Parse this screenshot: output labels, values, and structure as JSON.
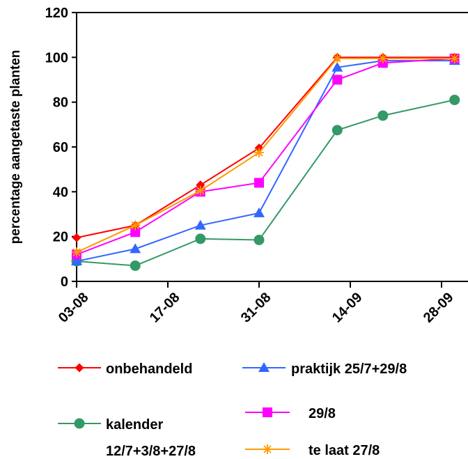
{
  "chart_data": {
    "type": "line",
    "title": "",
    "xlabel": "",
    "ylabel": "percentage aangetaste planten",
    "ylim": [
      0,
      120
    ],
    "yticks": [
      "0",
      "20",
      "40",
      "60",
      "80",
      "100",
      "120"
    ],
    "xlim": [
      "03-08",
      "07-10"
    ],
    "xticks": [
      "03-08",
      "17-08",
      "31-08",
      "14-09",
      "28-09"
    ],
    "grid": false,
    "legend_position": "bottom",
    "series": [
      {
        "name": "onbehandeld",
        "color": "#ff0000",
        "marker": "diamond",
        "points": [
          {
            "x": "03-08",
            "y": 19.5
          },
          {
            "x": "12-08",
            "y": 25
          },
          {
            "x": "22-08",
            "y": 43
          },
          {
            "x": "31-08",
            "y": 59.5
          },
          {
            "x": "12-09",
            "y": 100
          },
          {
            "x": "19-09",
            "y": 100
          },
          {
            "x": "30-09",
            "y": 100
          }
        ]
      },
      {
        "name": "praktijk 25/7+29/8",
        "color": "#3366ff",
        "marker": "triangle",
        "points": [
          {
            "x": "03-08",
            "y": 9
          },
          {
            "x": "12-08",
            "y": 14.5
          },
          {
            "x": "22-08",
            "y": 25
          },
          {
            "x": "31-08",
            "y": 30.5
          },
          {
            "x": "12-09",
            "y": 95.5
          },
          {
            "x": "19-09",
            "y": 98.5
          },
          {
            "x": "30-09",
            "y": 98.5
          }
        ]
      },
      {
        "name": "kalender 12/7+3/8+27/8",
        "name_lines": [
          "kalender",
          "12/7+3/8+27/8"
        ],
        "color": "#339966",
        "marker": "circle",
        "points": [
          {
            "x": "03-08",
            "y": 9
          },
          {
            "x": "12-08",
            "y": 7
          },
          {
            "x": "22-08",
            "y": 19
          },
          {
            "x": "31-08",
            "y": 18.5
          },
          {
            "x": "12-09",
            "y": 67.5
          },
          {
            "x": "19-09",
            "y": 74
          },
          {
            "x": "30-09",
            "y": 81
          }
        ]
      },
      {
        "name": "29/8",
        "color": "#ff00ff",
        "marker": "square",
        "points": [
          {
            "x": "03-08",
            "y": 12
          },
          {
            "x": "12-08",
            "y": 22
          },
          {
            "x": "22-08",
            "y": 40
          },
          {
            "x": "31-08",
            "y": 44
          },
          {
            "x": "12-09",
            "y": 90
          },
          {
            "x": "19-09",
            "y": 97.5
          },
          {
            "x": "30-09",
            "y": 99.5
          }
        ]
      },
      {
        "name": "te laat 27/8",
        "color": "#ff9900",
        "marker": "asterisk",
        "points": [
          {
            "x": "03-08",
            "y": 13
          },
          {
            "x": "12-08",
            "y": 25
          },
          {
            "x": "22-08",
            "y": 40.5
          },
          {
            "x": "31-08",
            "y": 57.5
          },
          {
            "x": "12-09",
            "y": 99.5
          },
          {
            "x": "19-09",
            "y": 99.5
          },
          {
            "x": "30-09",
            "y": 99.5
          }
        ]
      }
    ]
  }
}
